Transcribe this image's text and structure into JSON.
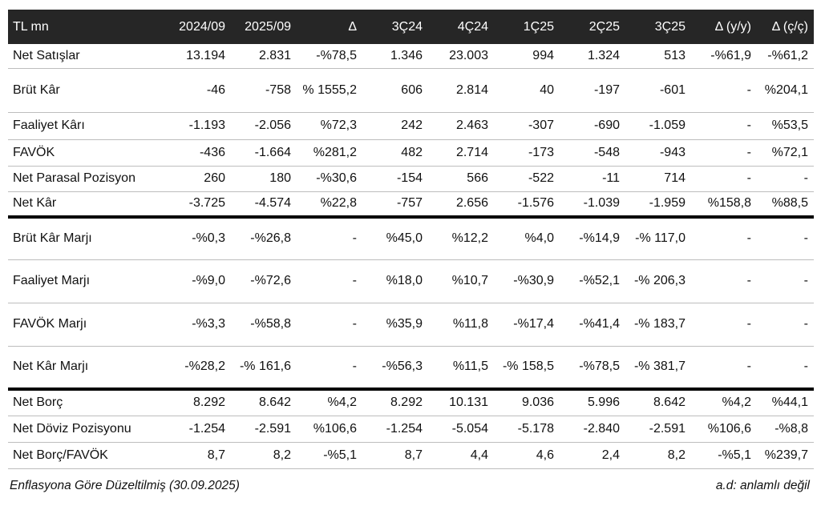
{
  "columns": [
    "TL mn",
    "2024/09",
    "2025/09",
    "Δ",
    "3Ç24",
    "4Ç24",
    "1Ç25",
    "2Ç25",
    "3Ç25",
    "Δ (y/y)",
    "Δ (ç/ç)"
  ],
  "rows": [
    {
      "label": "Net Satışlar",
      "cells": [
        "13.194",
        "2.831",
        "-%78,5",
        "1.346",
        "23.003",
        "994",
        "1.324",
        "513",
        "-%61,9",
        "-%61,2"
      ]
    },
    {
      "label": "Brüt Kâr",
      "cells": [
        "-46",
        "-758",
        "% 1555,2",
        "606",
        "2.814",
        "40",
        "-197",
        "-601",
        "-",
        "%204,1"
      ]
    },
    {
      "label": "Faaliyet Kârı",
      "cells": [
        "-1.193",
        "-2.056",
        "%72,3",
        "242",
        "2.463",
        "-307",
        "-690",
        "-1.059",
        "-",
        "%53,5"
      ]
    },
    {
      "label": "FAVÖK",
      "cells": [
        "-436",
        "-1.664",
        "%281,2",
        "482",
        "2.714",
        "-173",
        "-548",
        "-943",
        "-",
        "%72,1"
      ]
    },
    {
      "label": "Net Parasal Pozisyon",
      "cells": [
        "260",
        "180",
        "-%30,6",
        "-154",
        "566",
        "-522",
        "-11",
        "714",
        "-",
        "-"
      ]
    },
    {
      "label": "Net Kâr",
      "cells": [
        "-3.725",
        "-4.574",
        "%22,8",
        "-757",
        "2.656",
        "-1.576",
        "-1.039",
        "-1.959",
        "%158,8",
        "%88,5"
      ]
    },
    {
      "label": "Brüt Kâr Marjı",
      "cells": [
        "-%0,3",
        "-%26,8",
        "-",
        "%45,0",
        "%12,2",
        "%4,0",
        "-%14,9",
        "-% 117,0",
        "-",
        "-"
      ]
    },
    {
      "label": "Faaliyet Marjı",
      "cells": [
        "-%9,0",
        "-%72,6",
        "-",
        "%18,0",
        "%10,7",
        "-%30,9",
        "-%52,1",
        "-% 206,3",
        "-",
        "-"
      ]
    },
    {
      "label": "FAVÖK Marjı",
      "cells": [
        "-%3,3",
        "-%58,8",
        "-",
        "%35,9",
        "%11,8",
        "-%17,4",
        "-%41,4",
        "-% 183,7",
        "-",
        "-"
      ]
    },
    {
      "label": "Net Kâr Marjı",
      "cells": [
        "-%28,2",
        "-% 161,6",
        "-",
        "-%56,3",
        "%11,5",
        "-% 158,5",
        "-%78,5",
        "-% 381,7",
        "-",
        "-"
      ]
    },
    {
      "label": "Net Borç",
      "cells": [
        "8.292",
        "8.642",
        "%4,2",
        "8.292",
        "10.131",
        "9.036",
        "5.996",
        "8.642",
        "%4,2",
        "%44,1"
      ]
    },
    {
      "label": "Net Döviz Pozisyonu",
      "cells": [
        "-1.254",
        "-2.591",
        "%106,6",
        "-1.254",
        "-5.054",
        "-5.178",
        "-2.840",
        "-2.591",
        "%106,6",
        "-%8,8"
      ]
    },
    {
      "label": "Net Borç/FAVÖK",
      "cells": [
        "8,7",
        "8,2",
        "-%5,1",
        "8,7",
        "4,4",
        "4,6",
        "2,4",
        "8,2",
        "-%5,1",
        "%239,7"
      ]
    }
  ],
  "footer": {
    "left": "Enflasyona Göre Düzeltilmiş (30.09.2025)",
    "right": "a.d: anlamlı değil"
  }
}
